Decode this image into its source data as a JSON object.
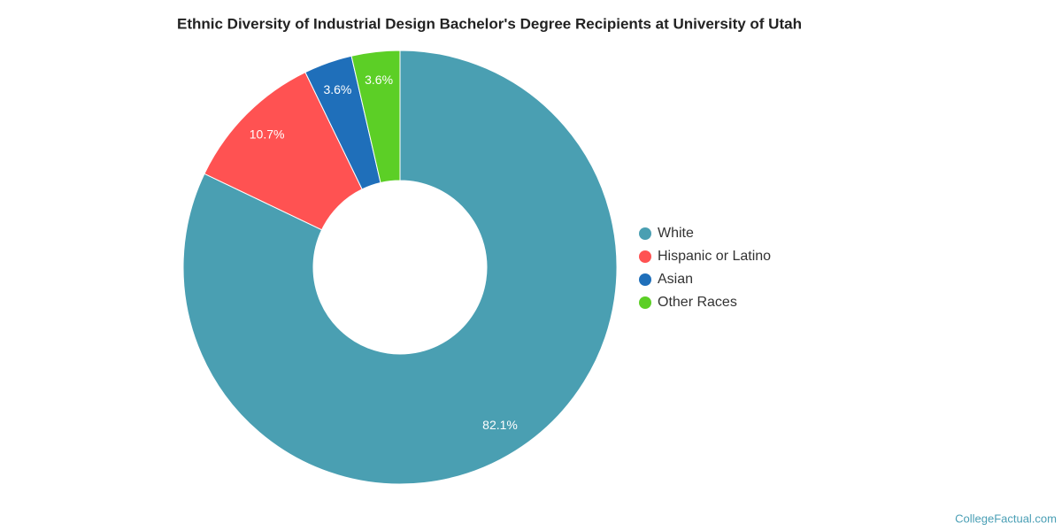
{
  "chart_data": {
    "type": "donut",
    "title": "Ethnic Diversity of Industrial Design Bachelor's Degree Recipients at University of Utah",
    "categories": [
      "White",
      "Hispanic or Latino",
      "Asian",
      "Other Races"
    ],
    "values": [
      82.1,
      10.7,
      3.6,
      3.6
    ],
    "value_labels": [
      "82.1%",
      "10.7%",
      "3.6%",
      "3.6%"
    ],
    "colors": [
      "#4a9fb2",
      "#ff5252",
      "#1f6fba",
      "#5ccf26"
    ],
    "legend": "right",
    "credit": "CollegeFactual.com"
  }
}
